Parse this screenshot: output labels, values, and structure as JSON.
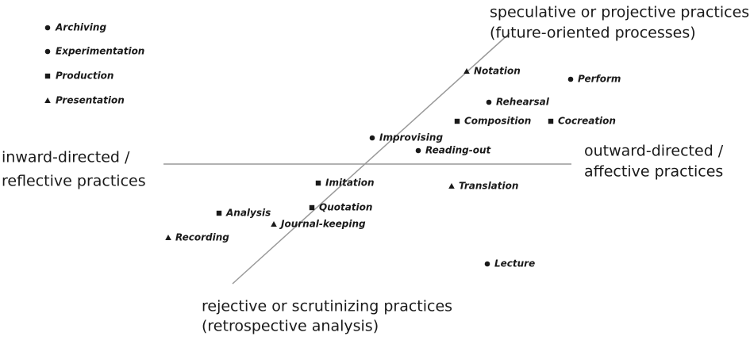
{
  "legend": [
    {
      "label": "Archiving",
      "shape": "circle"
    },
    {
      "label": "Experimentation",
      "shape": "circle"
    },
    {
      "label": "Production",
      "shape": "square"
    },
    {
      "label": "Presentation",
      "shape": "triangle"
    }
  ],
  "axes": {
    "top": [
      "speculative or projective practices",
      "(future-oriented processes)"
    ],
    "bottom": [
      "rejective or scrutinizing practices",
      "(retrospective analysis)"
    ],
    "left": [
      "inward-directed /",
      "reflective practices"
    ],
    "right": [
      "outward-directed /",
      "affective practices"
    ]
  },
  "nodes": [
    {
      "label": "Notation",
      "shape": "triangle"
    },
    {
      "label": "Perform",
      "shape": "circle"
    },
    {
      "label": "Rehearsal",
      "shape": "circle"
    },
    {
      "label": "Composition",
      "shape": "square"
    },
    {
      "label": "Cocreation",
      "shape": "square"
    },
    {
      "label": "Improvising",
      "shape": "circle"
    },
    {
      "label": "Reading-out",
      "shape": "circle"
    },
    {
      "label": "Imitation",
      "shape": "square"
    },
    {
      "label": "Translation",
      "shape": "triangle"
    },
    {
      "label": "Analysis",
      "shape": "square"
    },
    {
      "label": "Quotation",
      "shape": "square"
    },
    {
      "label": "Journal-keeping",
      "shape": "triangle"
    },
    {
      "label": "Recording",
      "shape": "triangle"
    },
    {
      "label": "Lecture",
      "shape": "circle"
    }
  ]
}
